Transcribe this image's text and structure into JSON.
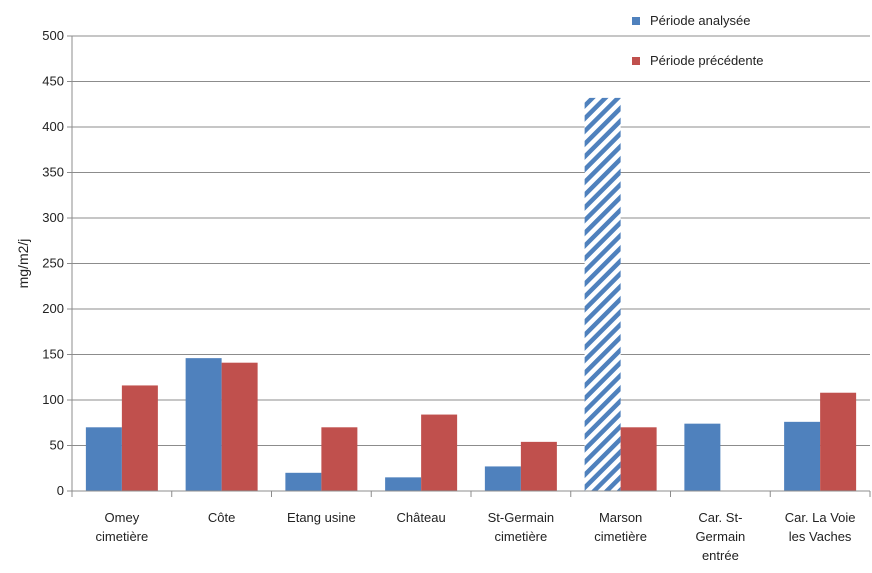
{
  "chart_data": {
    "type": "bar",
    "title": "",
    "xlabel": "",
    "ylabel": "mg/m2/j",
    "ylim": [
      0,
      500
    ],
    "yticks": [
      0,
      50,
      100,
      150,
      200,
      250,
      300,
      350,
      400,
      450,
      500
    ],
    "grid": true,
    "legend_position": "top-right",
    "categories": [
      [
        "Omey",
        "cimetière"
      ],
      [
        "Côte"
      ],
      [
        "Etang usine"
      ],
      [
        "Château"
      ],
      [
        "St-Germain",
        "cimetière"
      ],
      [
        "Marson",
        "cimetière"
      ],
      [
        "Car. St-",
        "Germain",
        "entrée"
      ],
      [
        "Car. La Voie",
        "les Vaches"
      ]
    ],
    "series": [
      {
        "name": "Période analysée",
        "color": "#4f81bd",
        "values": [
          70,
          146,
          20,
          15,
          27,
          432,
          74,
          76
        ],
        "hatched": [
          false,
          false,
          false,
          false,
          false,
          true,
          false,
          false
        ]
      },
      {
        "name": "Période précédente",
        "color": "#c0504d",
        "values": [
          116,
          141,
          70,
          84,
          54,
          70,
          null,
          108
        ]
      }
    ]
  }
}
